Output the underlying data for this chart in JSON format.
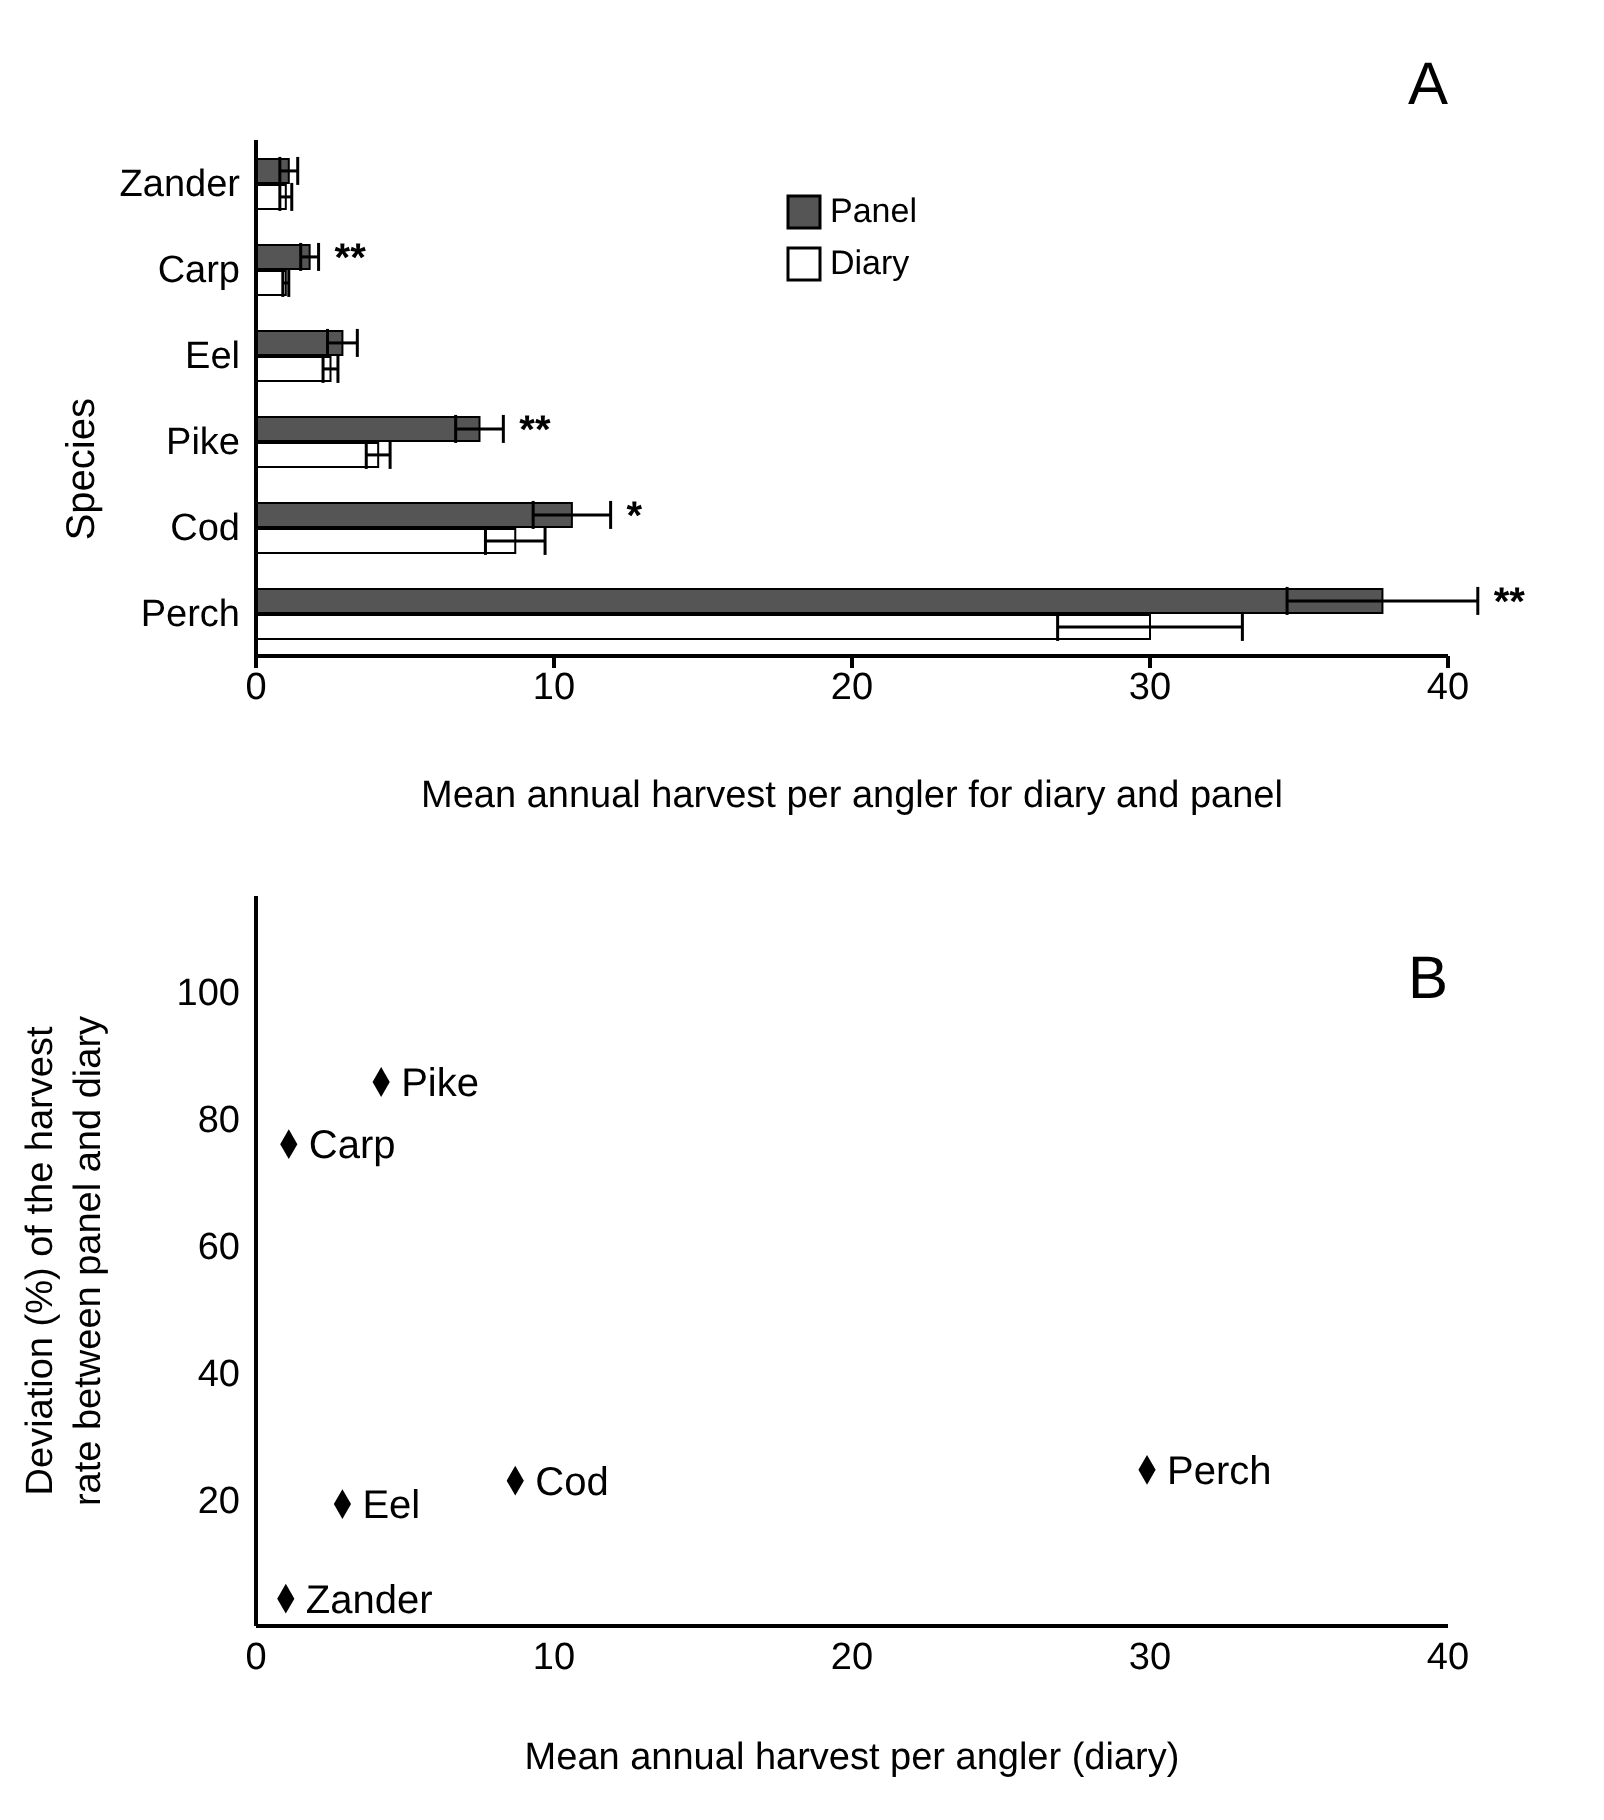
{
  "chart_data": [
    {
      "type": "bar",
      "orientation": "horizontal",
      "categories": [
        "Zander",
        "Carp",
        "Eel",
        "Pike",
        "Cod",
        "Perch"
      ],
      "xlabel": "Mean annual harvest per angler for diary and panel",
      "ylabel": "Species",
      "xlim": [
        0,
        40
      ],
      "xticks": [
        0,
        10,
        20,
        30,
        40
      ],
      "legend": "top",
      "grid": false,
      "series": [
        {
          "name": "Panel",
          "color": "#555555",
          "values": [
            1.1,
            1.8,
            2.9,
            7.5,
            10.6,
            37.8
          ],
          "errors": [
            0.3,
            0.3,
            0.5,
            0.8,
            1.3,
            3.2
          ],
          "value_labels": [
            null,
            "**",
            null,
            "**",
            "*",
            "**"
          ]
        },
        {
          "name": "Diary",
          "color": "#ffffff",
          "values": [
            1.0,
            1.0,
            2.5,
            4.1,
            8.7,
            30.0
          ],
          "errors": [
            0.2,
            0.1,
            0.25,
            0.4,
            1.0,
            3.1
          ]
        }
      ],
      "annotations": [
        "A"
      ]
    },
    {
      "type": "scatter",
      "xlabel": "Mean annual harvest per angler (diary)",
      "ylabel": "Deviation (%) of the harvest\nrate between panel and diary",
      "xlim": [
        0,
        40
      ],
      "xticks": [
        0,
        10,
        20,
        30,
        40
      ],
      "ylim": [
        0,
        115
      ],
      "yticks": [
        20,
        40,
        60,
        80,
        100
      ],
      "grid": false,
      "marker": "diamond",
      "series": [
        {
          "color": "#000000",
          "x": [
            4.2,
            1.1,
            2.9,
            8.7,
            29.9,
            1.0
          ],
          "values": [
            85.7,
            75.9,
            19.2,
            22.9,
            24.6,
            4.3
          ]
        }
      ],
      "annotations": [
        "B",
        {
          "text": "Pike",
          "x": 4.2,
          "y": 85.7
        },
        {
          "text": "Carp",
          "x": 1.1,
          "y": 75.9
        },
        {
          "text": "Eel",
          "x": 2.9,
          "y": 19.2
        },
        {
          "text": "Cod",
          "x": 8.7,
          "y": 22.9
        },
        {
          "text": "Perch",
          "x": 29.9,
          "y": 24.6
        },
        {
          "text": "Zander",
          "x": 1.0,
          "y": 4.3
        }
      ]
    }
  ]
}
